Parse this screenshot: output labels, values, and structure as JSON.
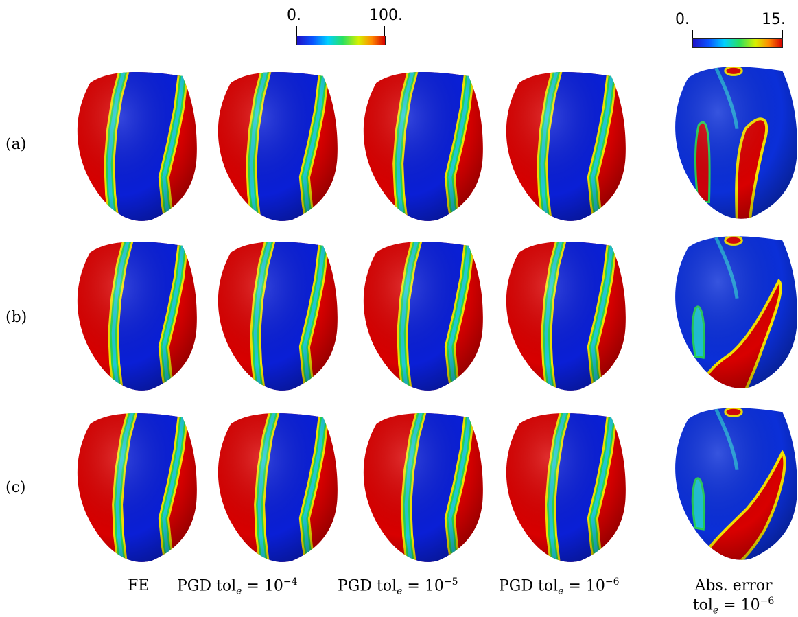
{
  "colorbars": [
    {
      "min_label": "0.",
      "max_label": "100."
    },
    {
      "min_label": "0.",
      "max_label": "15."
    }
  ],
  "row_labels": [
    "(a)",
    "(b)",
    "(c)"
  ],
  "columns": [
    {
      "label": "FE"
    },
    {
      "label": "PGD tol",
      "sub": "e",
      "suffix": " = 10",
      "sup": "−4"
    },
    {
      "label": "PGD tol",
      "sub": "e",
      "suffix": " = 10",
      "sup": "−5"
    },
    {
      "label": "PGD tol",
      "sub": "e",
      "suffix": " = 10",
      "sup": "−6"
    },
    {
      "label": "Abs. error",
      "line2": "tol",
      "sub": "e",
      "suffix": " = 10",
      "sup": "−6"
    }
  ],
  "colors": {
    "red": "#d80000",
    "blue": "#0a1fd6",
    "yellow": "#f4e200",
    "green": "#25d650",
    "cyan": "#21c9d6"
  }
}
